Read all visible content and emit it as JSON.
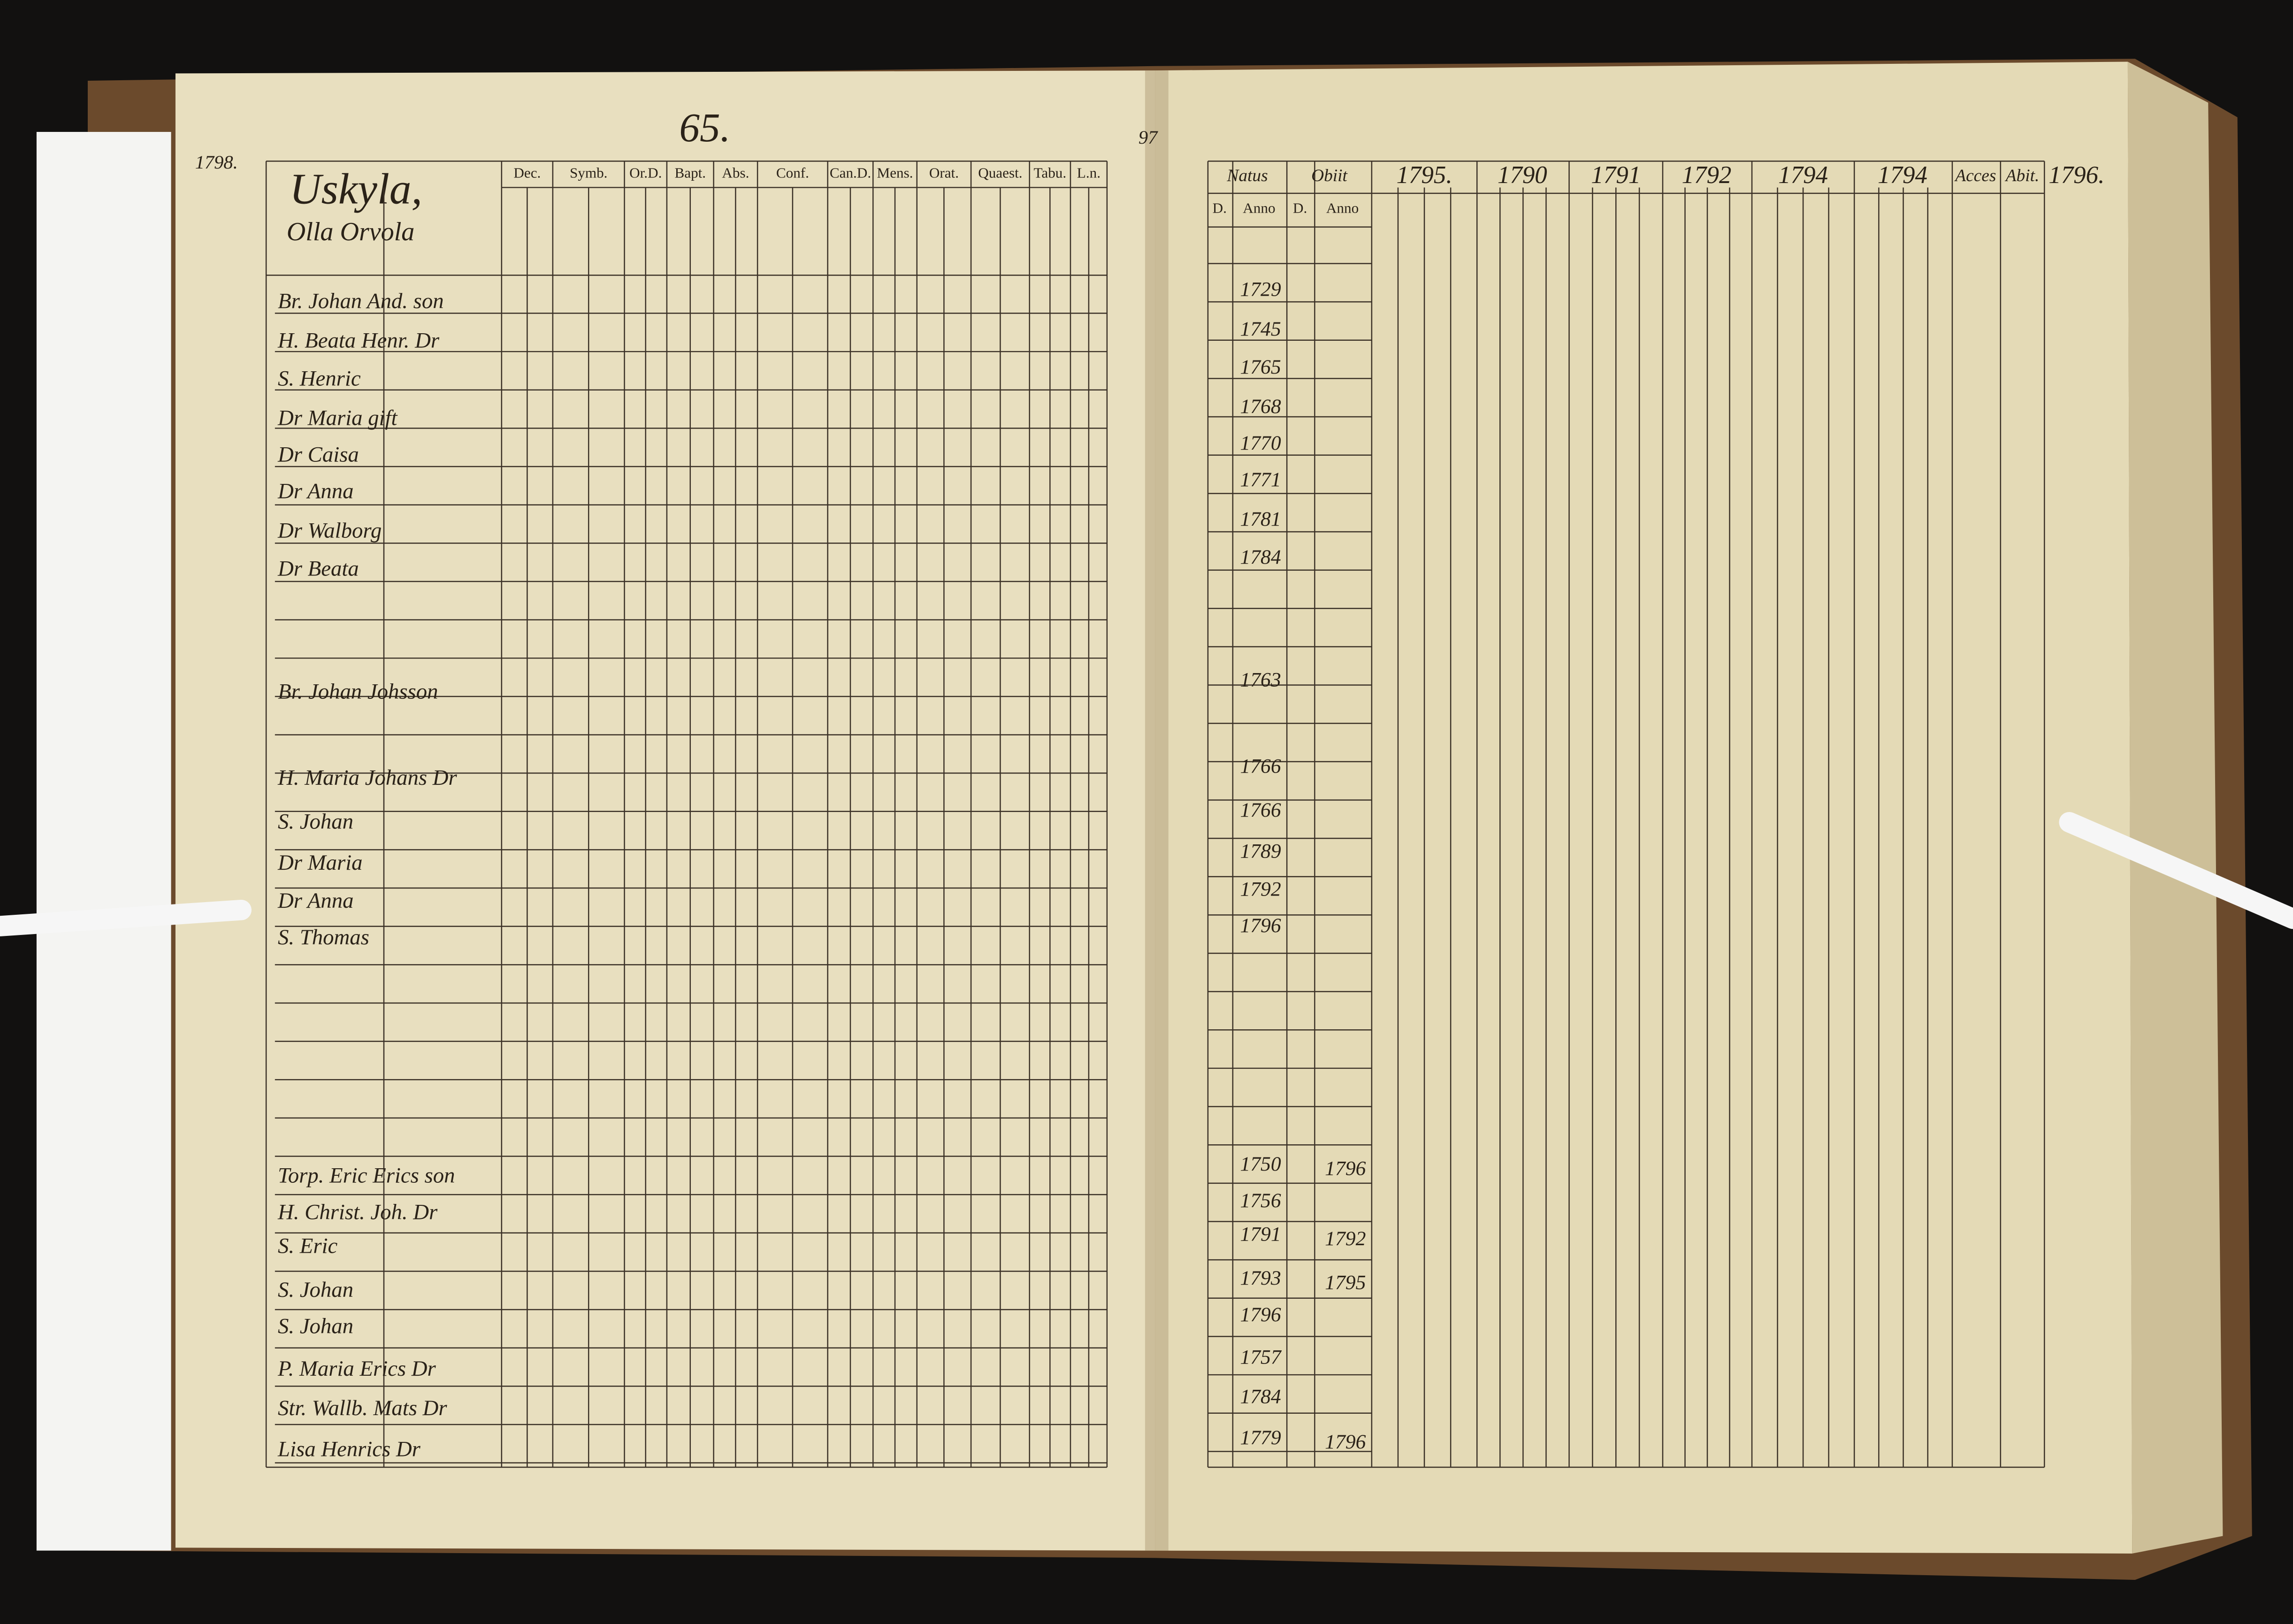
{
  "left_page": {
    "page_number": "65.",
    "year": "1798.",
    "village": "Uskyla,",
    "farm": "Olla Orvola",
    "column_headers": [
      "Dec.",
      "Symb.",
      "Or.D.",
      "Bapt.",
      "Abs.",
      "Conf.",
      "Can.D.",
      "Mens.",
      "Orat.",
      "Quaest.",
      "Tabu.",
      "L.n."
    ],
    "names": [
      "Br. Johan And. son",
      "H. Beata Henr. Dr",
      "S. Henric",
      "Dr Maria gift",
      "Dr Caisa",
      "Dr Anna",
      "Dr Walborg",
      "Dr Beata",
      "Br. Johan Johsson",
      "H. Maria Johans Dr",
      "S. Johan",
      "Dr Maria",
      "Dr Anna",
      "S. Thomas",
      "Torp. Eric Erics son",
      "H. Christ. Joh. Dr",
      "S. Eric",
      "S. Johan",
      "S. Johan",
      "P. Maria Erics Dr",
      "Str. Wallb. Mats Dr",
      "Lisa Henrics Dr"
    ]
  },
  "right_page": {
    "page_number": "97",
    "column_headers": [
      "Natus",
      "Obiit",
      "1795.",
      "1790",
      "1791",
      "1792",
      "1794",
      "1794",
      "Acces",
      "Abit.",
      "1796."
    ],
    "sub_headers": [
      "D.",
      "Anno",
      "D.",
      "Anno"
    ],
    "birth_years": [
      "1729",
      "1745",
      "1765",
      "1768",
      "1770",
      "1771",
      "1781",
      "1784",
      "1763",
      "1766",
      "1766",
      "1789",
      "1792",
      "1796",
      "1750",
      "1756",
      "1791",
      "1793",
      "1796",
      "1757",
      "1784",
      "1779"
    ],
    "deaths": [
      {
        "year": "1796",
        "row": 14
      },
      {
        "year": "1792",
        "row": 16
      },
      {
        "year": "1795",
        "row": 17
      },
      {
        "year": "1796",
        "row": 21
      }
    ]
  }
}
